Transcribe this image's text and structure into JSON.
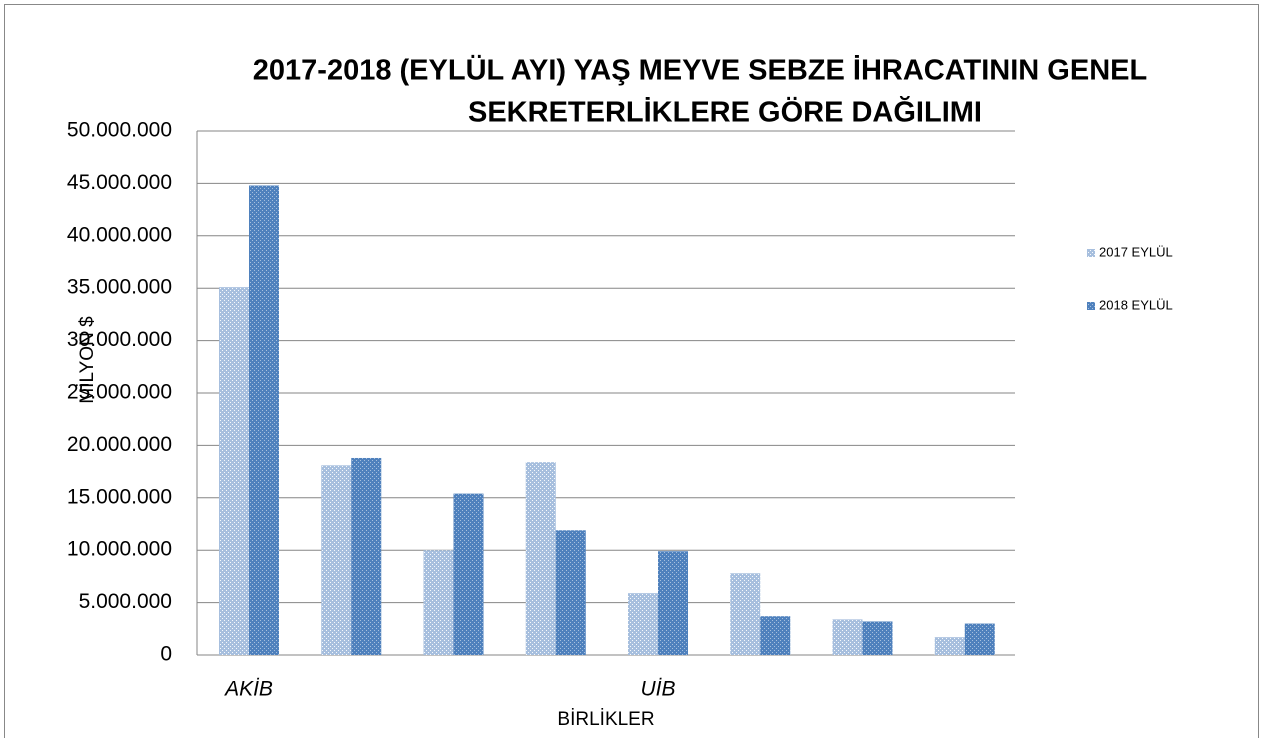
{
  "chart_data": {
    "type": "bar",
    "title": [
      "2017-2018 (EYLÜL AYI) YAŞ MEYVE SEBZE İHRACATININ GENEL",
      "SEKRETERLİKLERE  GÖRE DAĞILIMI"
    ],
    "y_label": "MİLYON $",
    "x_label": "BİRLİKLER",
    "categories": [
      "AKİB",
      null,
      null,
      null,
      "UİB",
      null,
      null,
      null
    ],
    "series": [
      {
        "name": "2017 EYLÜL",
        "color": "#a7bfde",
        "values": [
          35100000,
          18100000,
          10000000,
          18400000,
          5900000,
          7800000,
          3400000,
          1700000
        ]
      },
      {
        "name": "2018 EYLÜL",
        "color": "#4f81bd",
        "values": [
          44800000,
          18800000,
          15400000,
          11900000,
          9900000,
          3700000,
          3200000,
          3000000
        ]
      }
    ],
    "ylim": [
      0,
      50000000
    ],
    "yticks": [
      0,
      {
        "value": 5000000,
        "label": "5.000.000"
      },
      {
        "value": 10000000,
        "label": "10.000.000"
      },
      {
        "value": 15000000,
        "label": "15.000.000"
      },
      {
        "value": 20000000,
        "label": "20.000.000"
      },
      {
        "value": 25000000,
        "label": "25.000.000"
      },
      {
        "value": 30000000,
        "label": "30.000.000"
      },
      {
        "value": 35000000,
        "label": "35.000.000"
      },
      {
        "value": 40000000,
        "label": "40.000.000"
      },
      {
        "value": 45000000,
        "label": "45.000.000"
      },
      {
        "value": 50000000,
        "label": "50.000.000"
      }
    ],
    "grid": true,
    "legend": "right"
  }
}
